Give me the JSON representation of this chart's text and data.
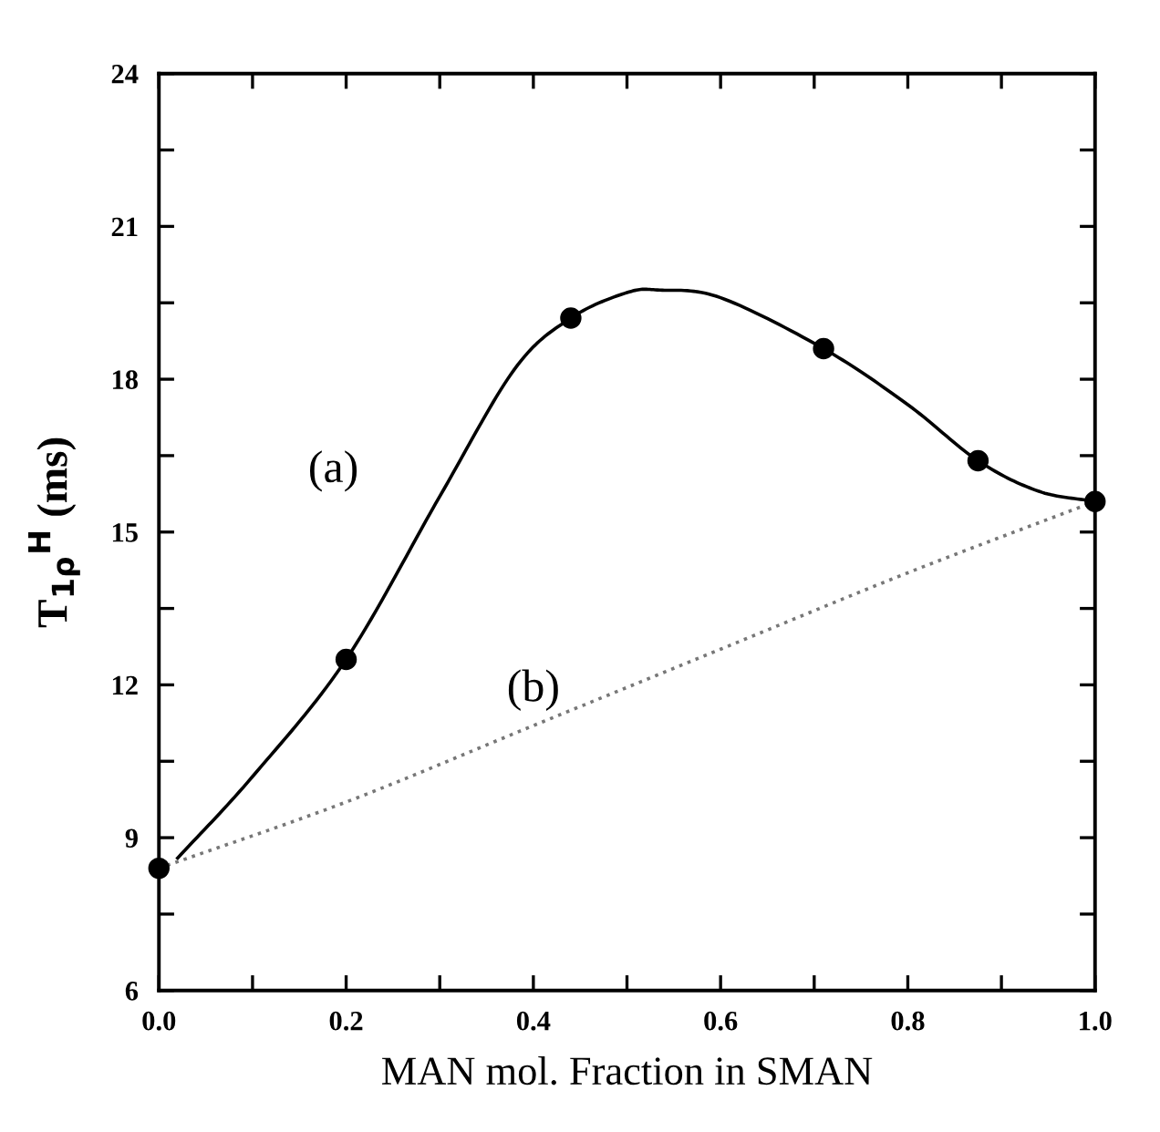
{
  "chart_data": {
    "type": "line",
    "xlabel": "MAN mol. Fraction in SMAN",
    "ylabel": "T$_{1ρ}$$^{H}$ (ms)",
    "xlim": [
      0,
      1
    ],
    "ylim": [
      6,
      24
    ],
    "xticks": [
      {
        "value": 0,
        "label": "0.0"
      },
      {
        "value": 0.1,
        "label": null
      },
      {
        "value": 0.2,
        "label": "0.2"
      },
      {
        "value": 0.3,
        "label": null
      },
      {
        "value": 0.4,
        "label": "0.4"
      },
      {
        "value": 0.5,
        "label": null
      },
      {
        "value": 0.6,
        "label": "0.6"
      },
      {
        "value": 0.7,
        "label": null
      },
      {
        "value": 0.8,
        "label": "0.8"
      },
      {
        "value": 0.9,
        "label": null
      },
      {
        "value": 1.0,
        "label": "1.0"
      }
    ],
    "yticks": [
      6,
      {
        "value": 7.5,
        "label": null
      },
      9,
      {
        "value": 10.5,
        "label": null
      },
      12,
      {
        "value": 13.5,
        "label": null
      },
      15,
      {
        "value": 16.5,
        "label": null
      },
      18,
      {
        "value": 19.5,
        "label": null
      },
      21,
      {
        "value": 22.5,
        "label": null
      },
      24
    ],
    "series": [
      {
        "name": "(a)",
        "color": "#000000",
        "line_style": "solid",
        "x": [
          0.02,
          0.1,
          0.2,
          0.3,
          0.38,
          0.44,
          0.5,
          0.535,
          0.6,
          0.71,
          0.8,
          0.875,
          0.94,
          1.0
        ],
        "values": [
          8.6,
          10.2,
          12.5,
          15.7,
          18.2,
          19.2,
          19.7,
          19.75,
          19.6,
          18.6,
          17.5,
          16.4,
          15.8,
          15.6
        ]
      },
      {
        "name": "(b)",
        "color": "#777777",
        "line_style": "dotted",
        "x": [
          0,
          0.2,
          0.4,
          0.6,
          0.8,
          1.0
        ],
        "values": [
          8.4,
          9.7,
          11.2,
          12.7,
          14.2,
          15.6
        ]
      },
      {
        "type": "scatter",
        "color": "#000000",
        "marker": "circle",
        "x": [
          0,
          0.2,
          0.44,
          0.71,
          0.875,
          1.0
        ],
        "values": [
          8.4,
          12.5,
          19.2,
          18.6,
          16.4,
          15.6
        ]
      }
    ]
  }
}
